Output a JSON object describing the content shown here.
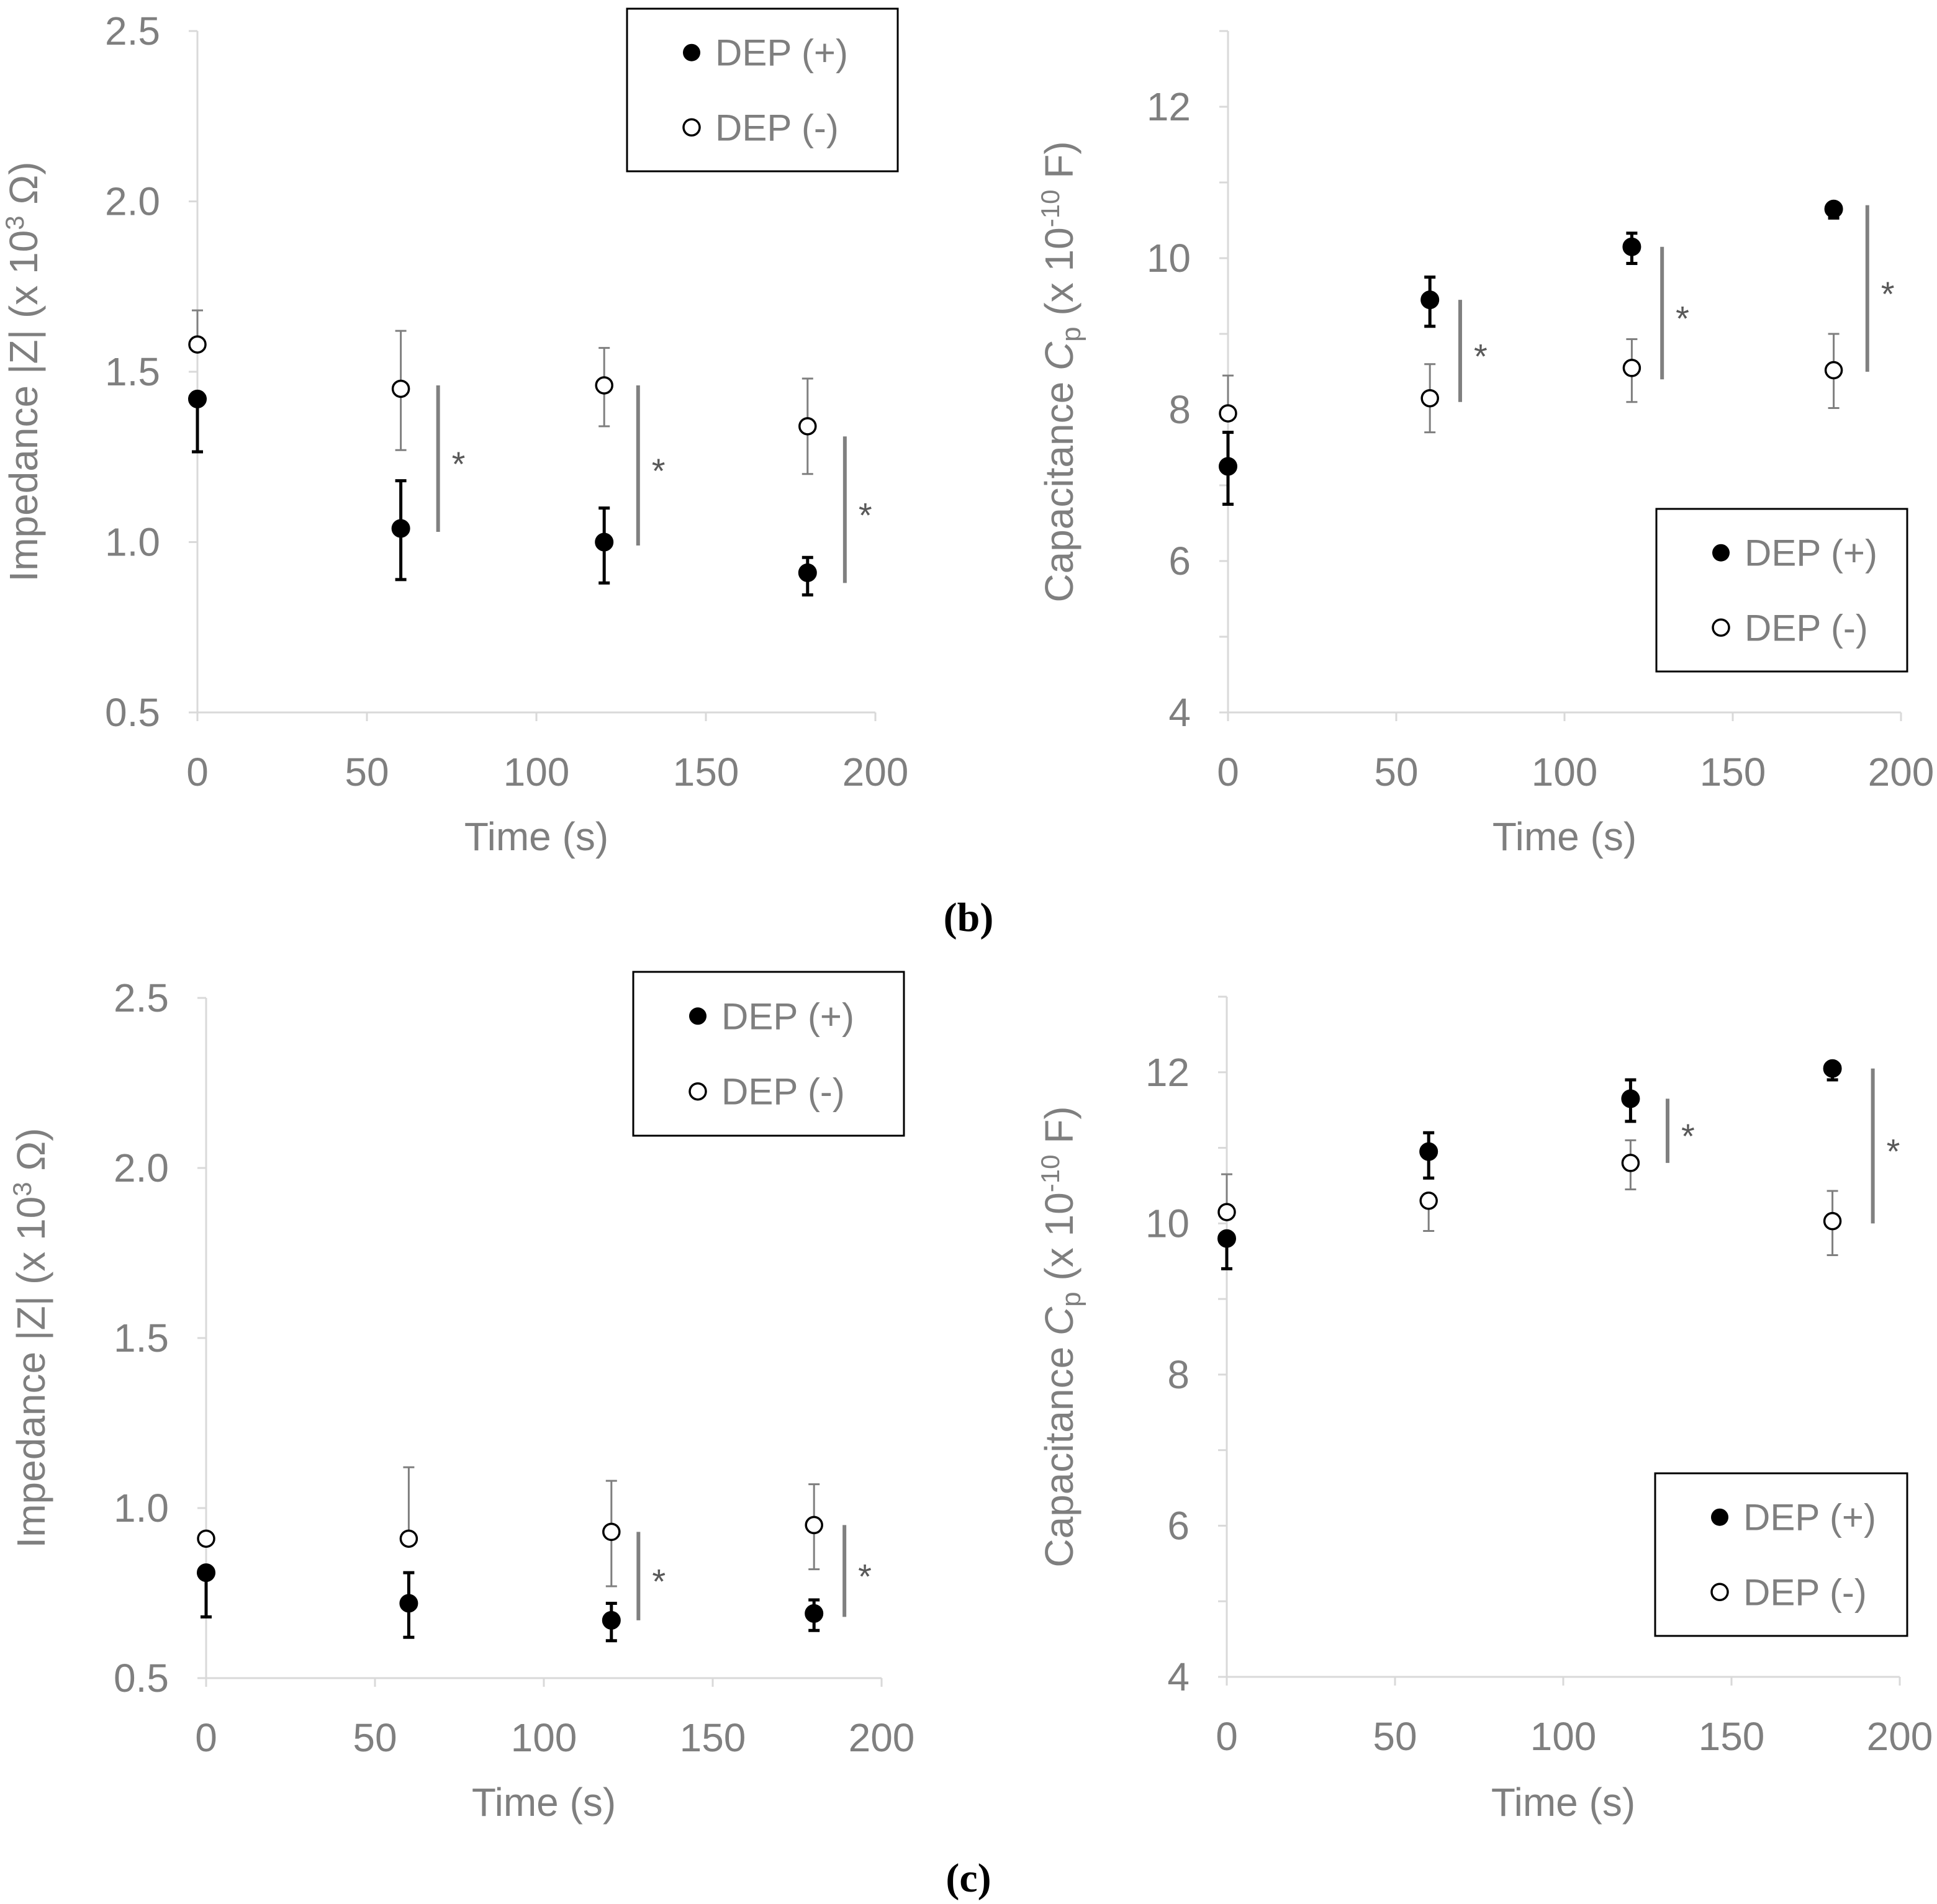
{
  "panel_labels": [
    "(b)",
    "(c)"
  ],
  "colors": {
    "axis": "#d9d9d9",
    "text": "#7f7f7f",
    "filled_marker": "#000000",
    "open_marker_stroke": "#000000",
    "significance_bar": "#808080",
    "open_errorbar": "#7f7f7f",
    "filled_errorbar": "#000000"
  },
  "chart_data": [
    {
      "id": "b-impedance",
      "panel": "b",
      "type": "scatter",
      "xlabel": "Time (s)",
      "ylabel": "Impedance |Z| (x 10³ Ω)",
      "xlim": [
        0,
        200
      ],
      "xticks": [
        0,
        50,
        100,
        150,
        200
      ],
      "ylim": [
        0.5,
        2.5
      ],
      "yticks": [
        0.5,
        1.0,
        1.5,
        2.0,
        2.5
      ],
      "ytick_labels": [
        "0.5",
        "1.0",
        "1.5",
        "2.0",
        "2.5"
      ],
      "ytick_decimals": 1,
      "grid": false,
      "legend_position": "top-right",
      "series": [
        {
          "name": "DEP (+)",
          "marker": "filled",
          "x": [
            0,
            60,
            120,
            180
          ],
          "y": [
            1.42,
            1.04,
            1.0,
            0.91
          ],
          "err_lo": [
            0.155,
            0.15,
            0.12,
            0.065
          ],
          "err_hi": [
            0.0,
            0.14,
            0.1,
            0.045
          ],
          "err_color": "#000000"
        },
        {
          "name": "DEP (-)",
          "marker": "open",
          "x": [
            0,
            60,
            120,
            180
          ],
          "y": [
            1.58,
            1.45,
            1.46,
            1.34
          ],
          "err_lo": [
            0.0,
            0.18,
            0.12,
            0.14
          ],
          "err_hi": [
            0.1,
            0.17,
            0.11,
            0.14
          ],
          "err_color": "#7f7f7f"
        }
      ],
      "significance": [
        {
          "x": 71,
          "y_low": 1.03,
          "y_high": 1.46,
          "label": "*"
        },
        {
          "x": 130,
          "y_low": 0.99,
          "y_high": 1.46,
          "label": "*"
        },
        {
          "x": 191,
          "y_low": 0.88,
          "y_high": 1.31,
          "label": "*"
        }
      ]
    },
    {
      "id": "b-capacitance",
      "panel": "b",
      "type": "scatter",
      "xlabel": "Time (s)",
      "ylabel": "Capacitance Cp (x 10⁻¹⁰ F)",
      "xlim": [
        0,
        200
      ],
      "xticks": [
        0,
        50,
        100,
        150,
        200
      ],
      "ylim": [
        4,
        13
      ],
      "yticks": [
        4,
        6,
        8,
        10,
        12
      ],
      "ytick_labels": [
        "4",
        "6",
        "8",
        "10",
        "12"
      ],
      "minor_yticks": [
        5,
        7,
        9,
        11,
        13
      ],
      "ytick_decimals": 0,
      "grid": false,
      "legend_position": "bottom-right",
      "series": [
        {
          "name": "DEP (+)",
          "marker": "filled",
          "x": [
            0,
            60,
            120,
            180
          ],
          "y": [
            7.25,
            9.45,
            10.15,
            10.65
          ],
          "err_lo": [
            0.5,
            0.35,
            0.22,
            0.12
          ],
          "err_hi": [
            0.45,
            0.3,
            0.18,
            0.08
          ],
          "err_color": "#000000"
        },
        {
          "name": "DEP (-)",
          "marker": "open",
          "x": [
            0,
            60,
            120,
            180
          ],
          "y": [
            7.95,
            8.15,
            8.55,
            8.52
          ],
          "err_lo": [
            0.0,
            0.45,
            0.45,
            0.5
          ],
          "err_hi": [
            0.5,
            0.45,
            0.38,
            0.48
          ],
          "err_color": "#7f7f7f"
        }
      ],
      "significance": [
        {
          "x": 69,
          "y_low": 8.1,
          "y_high": 9.45,
          "label": "*"
        },
        {
          "x": 129,
          "y_low": 8.4,
          "y_high": 10.15,
          "label": "*"
        },
        {
          "x": 190,
          "y_low": 8.5,
          "y_high": 10.7,
          "label": "*"
        }
      ]
    },
    {
      "id": "c-impedance",
      "panel": "c",
      "type": "scatter",
      "xlabel": "Time (s)",
      "ylabel": "Impedance |Z| (x 10³ Ω)",
      "xlim": [
        0,
        200
      ],
      "xticks": [
        0,
        50,
        100,
        150,
        200
      ],
      "ylim": [
        0.5,
        2.5
      ],
      "yticks": [
        0.5,
        1.0,
        1.5,
        2.0,
        2.5
      ],
      "ytick_labels": [
        "0.5",
        "1.0",
        "1.5",
        "2.0",
        "2.5"
      ],
      "ytick_decimals": 1,
      "grid": false,
      "legend_position": "top-right",
      "series": [
        {
          "name": "DEP (+)",
          "marker": "filled",
          "x": [
            0,
            60,
            120,
            180
          ],
          "y": [
            0.81,
            0.72,
            0.67,
            0.69
          ],
          "err_lo": [
            0.13,
            0.1,
            0.06,
            0.05
          ],
          "err_hi": [
            0.0,
            0.09,
            0.05,
            0.04
          ],
          "err_color": "#000000"
        },
        {
          "name": "DEP (-)",
          "marker": "open",
          "x": [
            0,
            60,
            120,
            180
          ],
          "y": [
            0.91,
            0.91,
            0.93,
            0.95
          ],
          "err_lo": [
            0.0,
            0.0,
            0.16,
            0.13
          ],
          "err_hi": [
            0.0,
            0.21,
            0.15,
            0.12
          ],
          "err_color": "#7f7f7f"
        }
      ],
      "significance": [
        {
          "x": 128,
          "y_low": 0.67,
          "y_high": 0.93,
          "label": "*"
        },
        {
          "x": 189,
          "y_low": 0.68,
          "y_high": 0.95,
          "label": "*"
        }
      ]
    },
    {
      "id": "c-capacitance",
      "panel": "c",
      "type": "scatter",
      "xlabel": "Time (s)",
      "ylabel": "Capacitance Cp (x 10⁻¹⁰ F)",
      "xlim": [
        0,
        200
      ],
      "xticks": [
        0,
        50,
        100,
        150,
        200
      ],
      "ylim": [
        4,
        13
      ],
      "yticks": [
        4,
        6,
        8,
        10,
        12
      ],
      "ytick_labels": [
        "4",
        "6",
        "8",
        "10",
        "12"
      ],
      "minor_yticks": [
        5,
        7,
        9,
        11,
        13
      ],
      "ytick_decimals": 0,
      "grid": false,
      "legend_position": "bottom-right",
      "series": [
        {
          "name": "DEP (+)",
          "marker": "filled",
          "x": [
            0,
            60,
            120,
            180
          ],
          "y": [
            9.8,
            10.95,
            11.65,
            12.05
          ],
          "err_lo": [
            0.4,
            0.35,
            0.3,
            0.15
          ],
          "err_hi": [
            0.0,
            0.25,
            0.25,
            0.0
          ],
          "err_color": "#000000"
        },
        {
          "name": "DEP (-)",
          "marker": "open",
          "x": [
            0,
            60,
            120,
            180
          ],
          "y": [
            10.15,
            10.3,
            10.8,
            10.03
          ],
          "err_lo": [
            0.0,
            0.4,
            0.35,
            0.45
          ],
          "err_hi": [
            0.5,
            0.0,
            0.3,
            0.4
          ],
          "err_color": "#7f7f7f"
        }
      ],
      "significance": [
        {
          "x": 131,
          "y_low": 10.8,
          "y_high": 11.65,
          "label": "*"
        },
        {
          "x": 192,
          "y_low": 10.0,
          "y_high": 12.05,
          "label": "*"
        }
      ]
    }
  ]
}
